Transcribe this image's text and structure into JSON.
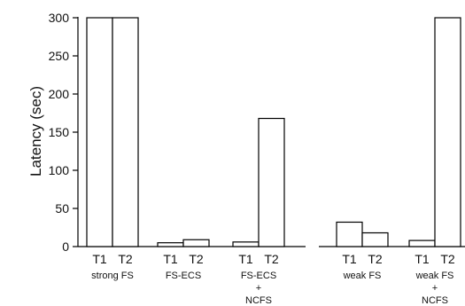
{
  "chart_data": {
    "type": "bar",
    "ylabel": "Latency (sec)",
    "xlabel": "",
    "title": "",
    "ylim": [
      0,
      300
    ],
    "yticks": [
      0,
      50,
      100,
      150,
      200,
      250,
      300
    ],
    "grid": false,
    "legend": "none",
    "bar_fill": "#ffffff",
    "bar_stroke": "#000000",
    "groups": [
      {
        "label_lines": [
          "strong FS"
        ],
        "bars": [
          {
            "label": "T1",
            "value": 300
          },
          {
            "label": "T2",
            "value": 300
          }
        ]
      },
      {
        "label_lines": [
          "FS-ECS"
        ],
        "bars": [
          {
            "label": "T1",
            "value": 5
          },
          {
            "label": "T2",
            "value": 9
          }
        ]
      },
      {
        "label_lines": [
          "FS-ECS",
          "+",
          "NCFS"
        ],
        "bars": [
          {
            "label": "T1",
            "value": 6
          },
          {
            "label": "T2",
            "value": 168
          }
        ]
      },
      {
        "label_lines": [
          "weak FS"
        ],
        "bars": [
          {
            "label": "T1",
            "value": 32
          },
          {
            "label": "T2",
            "value": 18
          }
        ]
      },
      {
        "label_lines": [
          "weak FS",
          "+",
          "NCFS"
        ],
        "bars": [
          {
            "label": "T1",
            "value": 8
          },
          {
            "label": "T2",
            "value": 300
          }
        ]
      }
    ]
  }
}
